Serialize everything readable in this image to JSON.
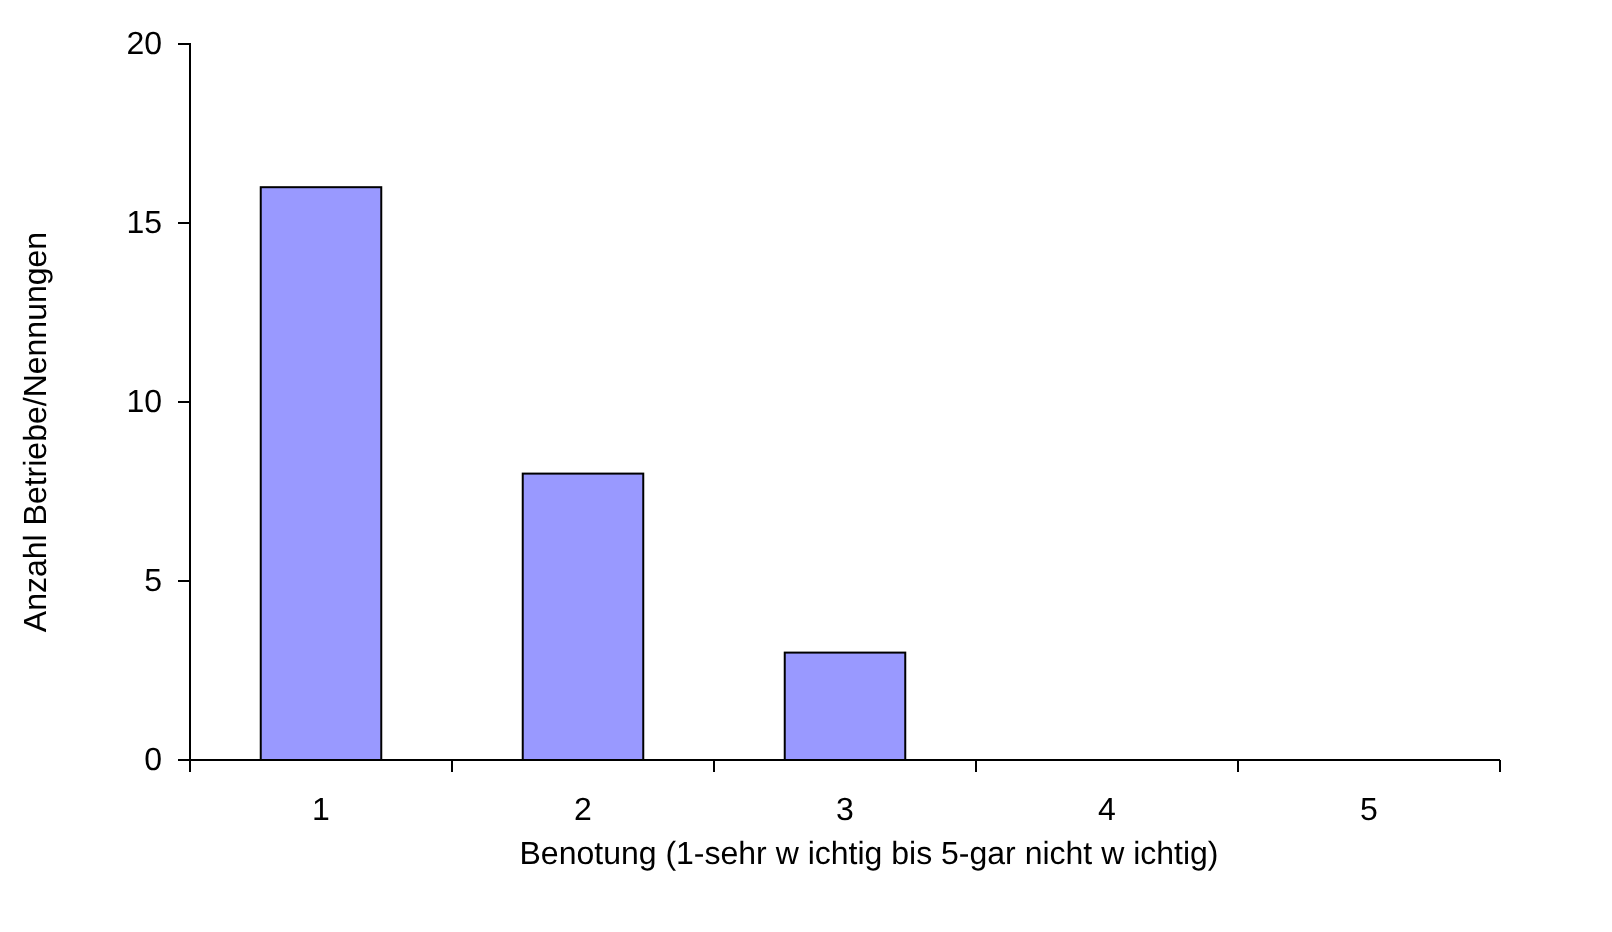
{
  "chart_data": {
    "type": "bar",
    "categories": [
      "1",
      "2",
      "3",
      "4",
      "5"
    ],
    "values": [
      16,
      8,
      3,
      0,
      0
    ],
    "color": "#9999ff",
    "ylim": [
      0,
      20
    ],
    "yticks": [
      0,
      5,
      10,
      15,
      20
    ],
    "xlabel": "Benotung (1-sehr w ichtig bis 5-gar nicht w ichtig)",
    "ylabel": "Anzahl Betriebe/Nennungen"
  }
}
